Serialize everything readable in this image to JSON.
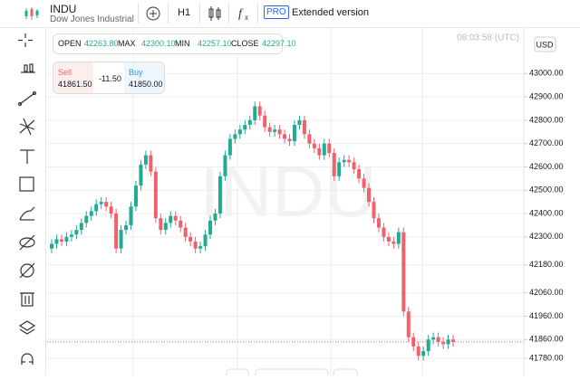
{
  "header": {
    "symbol": "INDU",
    "description": "Dow Jones Industrial Av",
    "timeframe": "H1",
    "pro_badge": "PRO",
    "pro_label": "Extended version"
  },
  "quote": {
    "ohlc": [
      {
        "label": "OPEN",
        "value": "42263.80"
      },
      {
        "label": "MAX",
        "value": "42300.10"
      },
      {
        "label": "MIN",
        "value": "42257.10"
      },
      {
        "label": "CLOSE",
        "value": "42297.10"
      }
    ],
    "time": "08:03:58 (UTC)",
    "sell_label": "Sell",
    "sell": "41861.50",
    "spread": "-11.50",
    "buy_label": "Buy",
    "buy": "41850.00"
  },
  "chart_data": {
    "type": "candlestick",
    "watermark": "INDU",
    "currency": "USD",
    "open": [
      42250,
      42270,
      42290,
      42280,
      42300,
      42310,
      42330,
      42360,
      42390,
      42410,
      42440,
      42450,
      42430,
      42400,
      42250,
      42330,
      42350,
      42430,
      42520,
      42610,
      42650,
      42580,
      42380,
      42330,
      42360,
      42390,
      42370,
      42340,
      42300,
      42280,
      42250,
      42260,
      42310,
      42370,
      42400,
      42560,
      42650,
      42720,
      42740,
      42760,
      42780,
      42800,
      42860,
      42820,
      42770,
      42750,
      42760,
      42740,
      42720,
      42710,
      42780,
      42800,
      42740,
      42700,
      42680,
      42650,
      42700,
      42660,
      42560,
      42620,
      42630,
      42620,
      42590,
      42550,
      42510,
      42450,
      42380,
      42340,
      42300,
      42280,
      42270,
      42320,
      41980,
      41870,
      41830,
      41790,
      41810,
      41860,
      41870,
      41850,
      41840,
      41860
    ],
    "high": [
      42290,
      42310,
      42310,
      42320,
      42330,
      42350,
      42380,
      42410,
      42430,
      42460,
      42470,
      42470,
      42450,
      42420,
      42350,
      42370,
      42450,
      42540,
      42630,
      42670,
      42670,
      42600,
      42400,
      42380,
      42410,
      42410,
      42390,
      42360,
      42320,
      42300,
      42280,
      42330,
      42390,
      42420,
      42580,
      42670,
      42740,
      42760,
      42780,
      42800,
      42820,
      42880,
      42880,
      42840,
      42790,
      42780,
      42780,
      42760,
      42740,
      42800,
      42820,
      42820,
      42760,
      42720,
      42700,
      42720,
      42720,
      42680,
      42640,
      42650,
      42650,
      42640,
      42610,
      42570,
      42530,
      42470,
      42400,
      42360,
      42320,
      42300,
      42340,
      42340,
      42000,
      41890,
      41850,
      41830,
      41880,
      41890,
      41890,
      41870,
      41880,
      41880
    ],
    "low": [
      42230,
      42250,
      42260,
      42260,
      42280,
      42290,
      42310,
      42340,
      42370,
      42390,
      42420,
      42410,
      42380,
      42230,
      42230,
      42310,
      42330,
      42410,
      42500,
      42590,
      42560,
      42360,
      42310,
      42310,
      42340,
      42350,
      42320,
      42280,
      42260,
      42230,
      42230,
      42240,
      42290,
      42350,
      42380,
      42540,
      42630,
      42700,
      42720,
      42740,
      42760,
      42780,
      42800,
      42750,
      42730,
      42730,
      42720,
      42700,
      42690,
      42690,
      42760,
      42720,
      42680,
      42660,
      42630,
      42630,
      42640,
      42540,
      42540,
      42600,
      42600,
      42570,
      42530,
      42490,
      42430,
      42360,
      42320,
      42280,
      42260,
      42250,
      42250,
      41960,
      41850,
      41810,
      41770,
      41770,
      41790,
      41840,
      41830,
      41820,
      41820,
      41830
    ],
    "close": [
      42270,
      42290,
      42280,
      42300,
      42310,
      42330,
      42360,
      42390,
      42410,
      42440,
      42450,
      42430,
      42400,
      42250,
      42330,
      42350,
      42430,
      42520,
      42610,
      42650,
      42580,
      42380,
      42330,
      42360,
      42390,
      42370,
      42340,
      42300,
      42280,
      42250,
      42260,
      42310,
      42370,
      42400,
      42560,
      42650,
      42720,
      42740,
      42760,
      42780,
      42800,
      42860,
      42820,
      42770,
      42750,
      42760,
      42740,
      42720,
      42710,
      42780,
      42800,
      42740,
      42700,
      42680,
      42650,
      42700,
      42660,
      42560,
      42620,
      42630,
      42620,
      42590,
      42550,
      42510,
      42450,
      42380,
      42340,
      42300,
      42280,
      42270,
      42320,
      41980,
      41870,
      41830,
      41790,
      41810,
      41860,
      41870,
      41850,
      41840,
      41860,
      41850
    ],
    "up_color": "#22ab94",
    "down_color": "#f0616d",
    "ylim": [
      41706,
      43199
    ],
    "yticks": [
      {
        "value": 43000,
        "label": "43000.00"
      },
      {
        "value": 42900,
        "label": "42900.00"
      },
      {
        "value": 42800,
        "label": "42800.00"
      },
      {
        "value": 42700,
        "label": "42700.00"
      },
      {
        "value": 42600,
        "label": "42600.00"
      },
      {
        "value": 42500,
        "label": "42500.00"
      },
      {
        "value": 42400,
        "label": "42400.00"
      },
      {
        "value": 42300,
        "label": "42300.00"
      },
      {
        "value": 42180,
        "label": "42180.00"
      },
      {
        "value": 42060,
        "label": "42060.00"
      },
      {
        "value": 41960,
        "label": "41960.00"
      },
      {
        "value": 41860,
        "label": "41860.00"
      },
      {
        "value": 41780,
        "label": "41780.00"
      }
    ],
    "grid": true
  }
}
